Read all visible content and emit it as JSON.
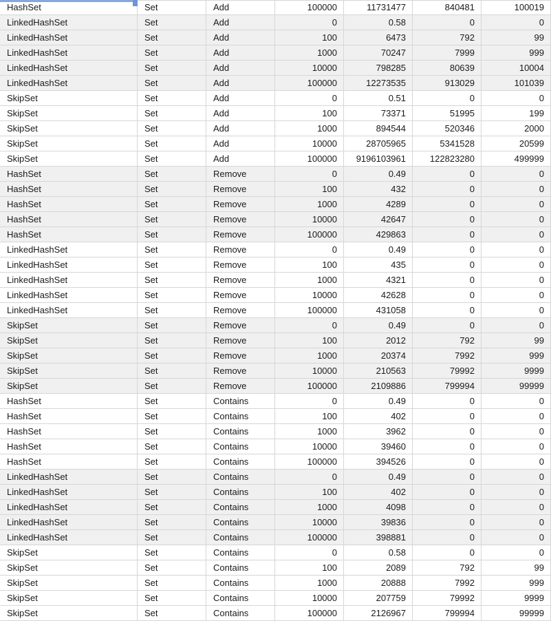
{
  "selection": {
    "row": 1,
    "col": 1,
    "value": "HashSet"
  },
  "colors": {
    "selection_blue": "#6e95d3",
    "selection_blue_light": "#85a7de",
    "band_gray": "#f0f0f0",
    "grid_line": "#d6d6d6"
  },
  "table": {
    "group_size": 5,
    "rows": [
      [
        "HashSet",
        "Set",
        "Add",
        "100000",
        "11731477",
        "840481",
        "100019"
      ],
      [
        "LinkedHashSet",
        "Set",
        "Add",
        "0",
        "0.58",
        "0",
        "0"
      ],
      [
        "LinkedHashSet",
        "Set",
        "Add",
        "100",
        "6473",
        "792",
        "99"
      ],
      [
        "LinkedHashSet",
        "Set",
        "Add",
        "1000",
        "70247",
        "7999",
        "999"
      ],
      [
        "LinkedHashSet",
        "Set",
        "Add",
        "10000",
        "798285",
        "80639",
        "10004"
      ],
      [
        "LinkedHashSet",
        "Set",
        "Add",
        "100000",
        "12273535",
        "913029",
        "101039"
      ],
      [
        "SkipSet",
        "Set",
        "Add",
        "0",
        "0.51",
        "0",
        "0"
      ],
      [
        "SkipSet",
        "Set",
        "Add",
        "100",
        "73371",
        "51995",
        "199"
      ],
      [
        "SkipSet",
        "Set",
        "Add",
        "1000",
        "894544",
        "520346",
        "2000"
      ],
      [
        "SkipSet",
        "Set",
        "Add",
        "10000",
        "28705965",
        "5341528",
        "20599"
      ],
      [
        "SkipSet",
        "Set",
        "Add",
        "100000",
        "9196103961",
        "122823280",
        "499999"
      ],
      [
        "HashSet",
        "Set",
        "Remove",
        "0",
        "0.49",
        "0",
        "0"
      ],
      [
        "HashSet",
        "Set",
        "Remove",
        "100",
        "432",
        "0",
        "0"
      ],
      [
        "HashSet",
        "Set",
        "Remove",
        "1000",
        "4289",
        "0",
        "0"
      ],
      [
        "HashSet",
        "Set",
        "Remove",
        "10000",
        "42647",
        "0",
        "0"
      ],
      [
        "HashSet",
        "Set",
        "Remove",
        "100000",
        "429863",
        "0",
        "0"
      ],
      [
        "LinkedHashSet",
        "Set",
        "Remove",
        "0",
        "0.49",
        "0",
        "0"
      ],
      [
        "LinkedHashSet",
        "Set",
        "Remove",
        "100",
        "435",
        "0",
        "0"
      ],
      [
        "LinkedHashSet",
        "Set",
        "Remove",
        "1000",
        "4321",
        "0",
        "0"
      ],
      [
        "LinkedHashSet",
        "Set",
        "Remove",
        "10000",
        "42628",
        "0",
        "0"
      ],
      [
        "LinkedHashSet",
        "Set",
        "Remove",
        "100000",
        "431058",
        "0",
        "0"
      ],
      [
        "SkipSet",
        "Set",
        "Remove",
        "0",
        "0.49",
        "0",
        "0"
      ],
      [
        "SkipSet",
        "Set",
        "Remove",
        "100",
        "2012",
        "792",
        "99"
      ],
      [
        "SkipSet",
        "Set",
        "Remove",
        "1000",
        "20374",
        "7992",
        "999"
      ],
      [
        "SkipSet",
        "Set",
        "Remove",
        "10000",
        "210563",
        "79992",
        "9999"
      ],
      [
        "SkipSet",
        "Set",
        "Remove",
        "100000",
        "2109886",
        "799994",
        "99999"
      ],
      [
        "HashSet",
        "Set",
        "Contains",
        "0",
        "0.49",
        "0",
        "0"
      ],
      [
        "HashSet",
        "Set",
        "Contains",
        "100",
        "402",
        "0",
        "0"
      ],
      [
        "HashSet",
        "Set",
        "Contains",
        "1000",
        "3962",
        "0",
        "0"
      ],
      [
        "HashSet",
        "Set",
        "Contains",
        "10000",
        "39460",
        "0",
        "0"
      ],
      [
        "HashSet",
        "Set",
        "Contains",
        "100000",
        "394526",
        "0",
        "0"
      ],
      [
        "LinkedHashSet",
        "Set",
        "Contains",
        "0",
        "0.49",
        "0",
        "0"
      ],
      [
        "LinkedHashSet",
        "Set",
        "Contains",
        "100",
        "402",
        "0",
        "0"
      ],
      [
        "LinkedHashSet",
        "Set",
        "Contains",
        "1000",
        "4098",
        "0",
        "0"
      ],
      [
        "LinkedHashSet",
        "Set",
        "Contains",
        "10000",
        "39836",
        "0",
        "0"
      ],
      [
        "LinkedHashSet",
        "Set",
        "Contains",
        "100000",
        "398881",
        "0",
        "0"
      ],
      [
        "SkipSet",
        "Set",
        "Contains",
        "0",
        "0.58",
        "0",
        "0"
      ],
      [
        "SkipSet",
        "Set",
        "Contains",
        "100",
        "2089",
        "792",
        "99"
      ],
      [
        "SkipSet",
        "Set",
        "Contains",
        "1000",
        "20888",
        "7992",
        "999"
      ],
      [
        "SkipSet",
        "Set",
        "Contains",
        "10000",
        "207759",
        "79992",
        "9999"
      ],
      [
        "SkipSet",
        "Set",
        "Contains",
        "100000",
        "2126967",
        "799994",
        "99999"
      ]
    ]
  }
}
